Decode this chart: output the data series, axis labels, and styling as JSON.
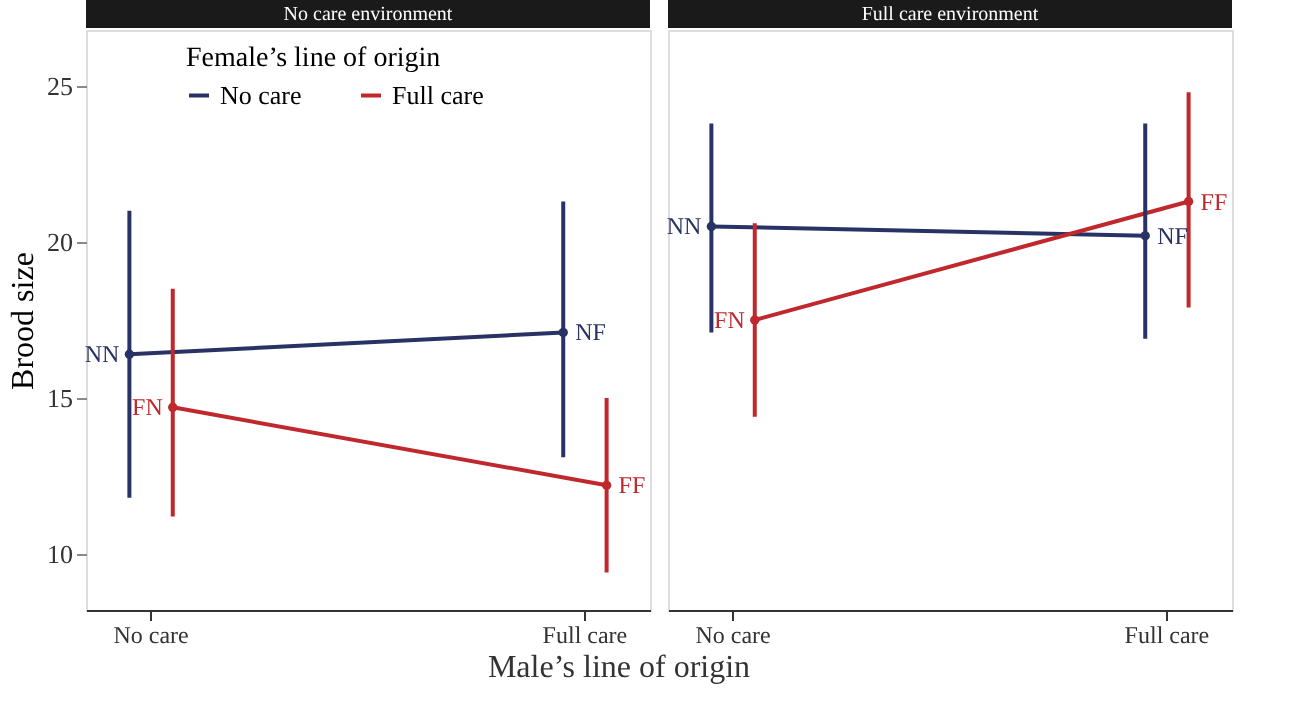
{
  "chart_data": [
    {
      "type": "line",
      "title": "No care environment",
      "xlabel": "Male’s line of origin",
      "ylabel": "Brood size",
      "legend_title": "Female’s line of origin",
      "legend": "top left",
      "categories": [
        "No care",
        "Full care"
      ],
      "ylim": [
        8.2,
        26.8
      ],
      "yticks": [
        10,
        15,
        20,
        25
      ],
      "grid": false,
      "marker": "circle",
      "series": [
        {
          "name": "No care",
          "color": "#283264",
          "values": [
            16.4,
            17.1
          ],
          "errors": [
            [
              11.8,
              21.0
            ],
            [
              13.1,
              21.3
            ]
          ],
          "value_labels": [
            "NN",
            "NF"
          ]
        },
        {
          "name": "Full care",
          "color": "#c0282d",
          "values": [
            14.7,
            12.2
          ],
          "errors": [
            [
              11.2,
              18.5
            ],
            [
              9.4,
              15.0
            ]
          ],
          "value_labels": [
            "FN",
            "FF"
          ]
        }
      ]
    },
    {
      "type": "line",
      "title": "Full care environment",
      "categories": [
        "No care",
        "Full care"
      ],
      "ylim": [
        8.2,
        26.8
      ],
      "yticks": [
        10,
        15,
        20,
        25
      ],
      "grid": false,
      "marker": "circle",
      "tick_labels": "x",
      "series": [
        {
          "color": "#283264",
          "values": [
            20.5,
            20.2
          ],
          "errors": [
            [
              17.1,
              23.8
            ],
            [
              16.9,
              23.8
            ]
          ],
          "value_labels": [
            "NN",
            "NF"
          ]
        },
        {
          "color": "#c0282d",
          "values": [
            17.5,
            21.3
          ],
          "errors": [
            [
              14.4,
              20.6
            ],
            [
              17.9,
              24.8
            ]
          ],
          "value_labels": [
            "FN",
            "FF"
          ]
        }
      ]
    }
  ]
}
